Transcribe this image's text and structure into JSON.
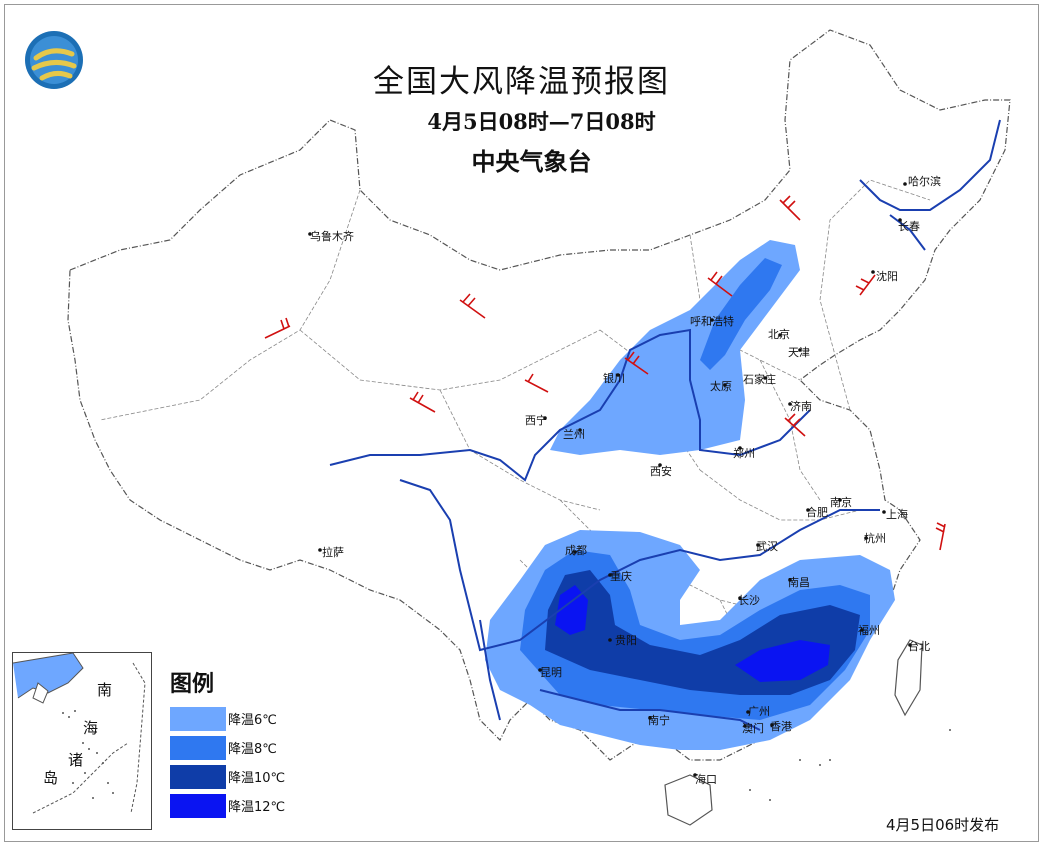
{
  "header": {
    "title": "全国大风降温预报图",
    "period": "4月5日08时—7日08时",
    "issuer": "中央气象台"
  },
  "legend": {
    "title": "图例",
    "items": [
      {
        "label": "降温6℃",
        "color": "#6ea7ff"
      },
      {
        "label": "降温8℃",
        "color": "#2f78f0"
      },
      {
        "label": "降温10℃",
        "color": "#0f3da8"
      },
      {
        "label": "降温12℃",
        "color": "#0a14f2"
      }
    ]
  },
  "cities": [
    {
      "name": "乌鲁木齐"
    },
    {
      "name": "哈尔滨"
    },
    {
      "name": "长春"
    },
    {
      "name": "沈阳"
    },
    {
      "name": "呼和浩特"
    },
    {
      "name": "北京"
    },
    {
      "name": "天津"
    },
    {
      "name": "石家庄"
    },
    {
      "name": "太原"
    },
    {
      "name": "银川"
    },
    {
      "name": "济南"
    },
    {
      "name": "西宁"
    },
    {
      "name": "兰州"
    },
    {
      "name": "郑州"
    },
    {
      "name": "西安"
    },
    {
      "name": "南京"
    },
    {
      "name": "合肥"
    },
    {
      "name": "上海"
    },
    {
      "name": "拉萨"
    },
    {
      "name": "成都"
    },
    {
      "name": "武汉"
    },
    {
      "name": "杭州"
    },
    {
      "name": "重庆"
    },
    {
      "name": "南昌"
    },
    {
      "name": "长沙"
    },
    {
      "name": "贵阳"
    },
    {
      "name": "福州"
    },
    {
      "name": "台北"
    },
    {
      "name": "昆明"
    },
    {
      "name": "南宁"
    },
    {
      "name": "广州"
    },
    {
      "name": "澳门"
    },
    {
      "name": "香港"
    },
    {
      "name": "海口"
    }
  ],
  "inset": {
    "label_chars": [
      "南",
      "海",
      "诸",
      "岛"
    ]
  },
  "footer": {
    "issued": "4月5日06时发布"
  },
  "colors": {
    "boundary": "#555555",
    "river": "#1a3fb0",
    "wind_barb": "#d01010"
  },
  "icons": {
    "logo": "cma-logo-icon",
    "wind": "wind-barb-icon"
  }
}
